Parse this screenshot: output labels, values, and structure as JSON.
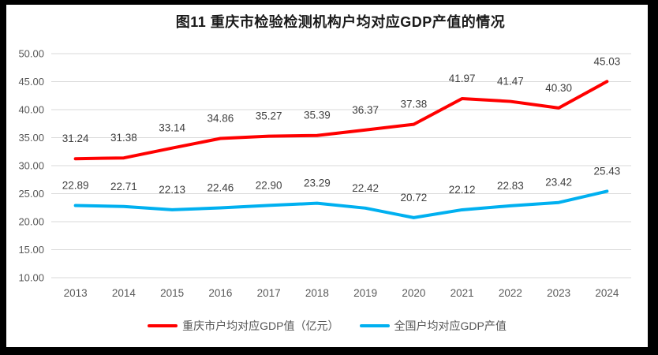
{
  "window": {
    "frame_color": "#000000",
    "surface_color": "#ffffff"
  },
  "chart_data": {
    "type": "line",
    "title": "图11 重庆市检验检测机构户均对应GDP产值的情况",
    "categories": [
      "2013",
      "2014",
      "2015",
      "2016",
      "2017",
      "2018",
      "2019",
      "2020",
      "2021",
      "2022",
      "2023",
      "2024"
    ],
    "series": [
      {
        "name": "重庆市户均对应GDP值（亿元）",
        "color": "#FF0000",
        "values": [
          31.24,
          31.38,
          33.14,
          34.86,
          35.27,
          35.39,
          36.37,
          37.38,
          41.97,
          41.47,
          40.3,
          45.03
        ]
      },
      {
        "name": "全国户均对应GDP产值",
        "color": "#00B0F0",
        "values": [
          22.89,
          22.71,
          22.13,
          22.46,
          22.9,
          23.29,
          22.42,
          20.72,
          22.12,
          22.83,
          23.42,
          25.43
        ]
      }
    ],
    "xlabel": "",
    "ylabel": "",
    "ylim": [
      10,
      50
    ],
    "y_tick_step": 5,
    "y_tick_labels": [
      "10.00",
      "15.00",
      "20.00",
      "25.00",
      "30.00",
      "35.00",
      "40.00",
      "45.00",
      "50.00"
    ],
    "grid": "horizontal",
    "gridline_color": "#D9D9D9",
    "axis_text_color": "#595959",
    "label_text_color": "#3f3f3f",
    "data_labels": "above",
    "legend_position": "bottom"
  }
}
